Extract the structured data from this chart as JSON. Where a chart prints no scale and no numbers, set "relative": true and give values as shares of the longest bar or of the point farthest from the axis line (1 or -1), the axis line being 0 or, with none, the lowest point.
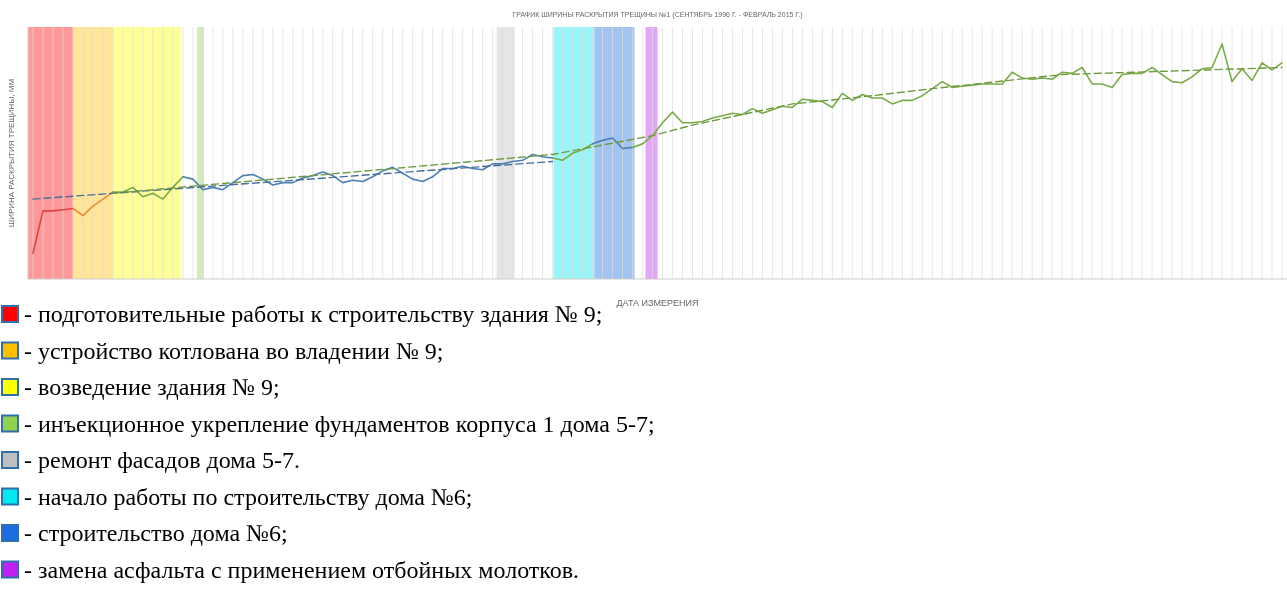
{
  "chart_data": {
    "type": "line",
    "title": "ГРАФИК ШИРИНЫ РАСКРЫТИЯ ТРЕЩИНЫ №1 (СЕНТЯБРЬ 1996 Г. - ФЕВРАЛЬ 2015 Г.)",
    "xlabel": "ДАТА ИЗМЕРЕНИЯ",
    "ylabel": "ШИРИНА РАСКРЫТИЯ ТРЕЩИНЫ, ММ",
    "relative": true,
    "grid": "x",
    "marker": "none",
    "categories": [
      null,
      null,
      null,
      null,
      null,
      null,
      null,
      null,
      null,
      null,
      null,
      null,
      null,
      null,
      null,
      null,
      null,
      null,
      null,
      null,
      null,
      null,
      null,
      null,
      null,
      null,
      null,
      null,
      null,
      null,
      null,
      null,
      null,
      null,
      null,
      null,
      null,
      null,
      null,
      null,
      null,
      null,
      null,
      null,
      null,
      null,
      null,
      null,
      null,
      null,
      null,
      null,
      null,
      null,
      null,
      null,
      null,
      null,
      null,
      null,
      null,
      null,
      null,
      null,
      null,
      null,
      null,
      null,
      null,
      null,
      null,
      null,
      null,
      null,
      null,
      null,
      null,
      null,
      null,
      null,
      null,
      null,
      null,
      null,
      null,
      null,
      null,
      null,
      null,
      null,
      null,
      null,
      null,
      null,
      null,
      null,
      null,
      null,
      null,
      null,
      null,
      null,
      null,
      null,
      null,
      null,
      null,
      null,
      null,
      null,
      null,
      null,
      null,
      null,
      null,
      null,
      null,
      null,
      null,
      null,
      null,
      null,
      null,
      null,
      null,
      null
    ],
    "series": [
      {
        "color": "#e04040",
        "line_style": "solid",
        "values": [
          0.11,
          0.29,
          0.29,
          0.295,
          0.3,
          null,
          null,
          null,
          null,
          null,
          null,
          null,
          null,
          null,
          null,
          null,
          null,
          null,
          null,
          null,
          null,
          null,
          null,
          null,
          null,
          null,
          null,
          null,
          null,
          null,
          null,
          null,
          null,
          null,
          null,
          null,
          null,
          null,
          null,
          null,
          null,
          null,
          null,
          null,
          null,
          null,
          null,
          null,
          null,
          null,
          null,
          null,
          null,
          null,
          null,
          null,
          null,
          null,
          null,
          null,
          null,
          null,
          null,
          null,
          null,
          null,
          null,
          null,
          null,
          null,
          null,
          null,
          null,
          null,
          null,
          null,
          null,
          null,
          null,
          null,
          null,
          null,
          null,
          null,
          null,
          null,
          null,
          null,
          null,
          null,
          null,
          null,
          null,
          null,
          null,
          null,
          null,
          null,
          null,
          null,
          null,
          null,
          null,
          null,
          null,
          null,
          null,
          null,
          null,
          null,
          null,
          null,
          null,
          null,
          null,
          null,
          null,
          null,
          null,
          null,
          null,
          null,
          null,
          null,
          null,
          null
        ]
      },
      {
        "color": "#f0883a",
        "line_style": "solid",
        "values": [
          null,
          null,
          null,
          null,
          0.3,
          0.27,
          0.31,
          0.34,
          0.37,
          null,
          null,
          null,
          null,
          null,
          null,
          null,
          null,
          null,
          null,
          null,
          null,
          null,
          null,
          null,
          null,
          null,
          null,
          null,
          null,
          null,
          null,
          null,
          null,
          null,
          null,
          null,
          null,
          null,
          null,
          null,
          null,
          null,
          null,
          null,
          null,
          null,
          null,
          null,
          null,
          null,
          null,
          null,
          null,
          null,
          null,
          null,
          null,
          null,
          null,
          null,
          null,
          null,
          null,
          null,
          null,
          null,
          null,
          null,
          null,
          null,
          null,
          null,
          null,
          null,
          null,
          null,
          null,
          null,
          null,
          null,
          null,
          null,
          null,
          null,
          null,
          null,
          null,
          null,
          null,
          null,
          null,
          null,
          null,
          null,
          null,
          null,
          null,
          null,
          null,
          null,
          null,
          null,
          null,
          null,
          null,
          null,
          null,
          null,
          null,
          null,
          null,
          null,
          null,
          null,
          null,
          null,
          null,
          null,
          null,
          null,
          null,
          null,
          null,
          null,
          null,
          null
        ]
      },
      {
        "color": "#7aab4a",
        "line_style": "solid",
        "values": [
          null,
          null,
          null,
          null,
          null,
          null,
          null,
          null,
          0.37,
          0.37,
          0.39,
          0.35,
          0.365,
          0.34,
          0.39,
          0.435,
          null,
          null,
          null,
          null,
          null,
          null,
          null,
          null,
          null,
          null,
          null,
          null,
          null,
          null,
          null,
          null,
          null,
          null,
          null,
          null,
          null,
          null,
          null,
          null,
          null,
          null,
          null,
          null,
          null,
          null,
          null,
          null,
          null,
          null,
          null,
          null,
          null,
          null,
          null,
          null,
          null,
          null,
          null,
          null,
          null,
          null,
          null,
          null,
          null,
          null,
          null,
          null,
          null,
          null,
          null,
          null,
          null,
          null,
          null,
          null,
          null,
          null,
          null,
          null,
          null,
          null,
          null,
          null,
          null,
          null,
          null,
          null,
          null,
          null,
          null,
          null,
          null,
          null,
          null,
          null,
          null,
          null,
          null,
          null,
          null,
          null,
          null,
          null,
          null,
          null,
          null,
          null,
          null,
          null,
          null,
          null,
          null,
          null,
          null,
          null,
          null,
          null,
          null,
          null,
          null,
          null,
          null,
          null,
          null,
          null
        ]
      },
      {
        "color": "#4a80b4",
        "line_style": "solid",
        "values": [
          null,
          null,
          null,
          null,
          null,
          null,
          null,
          null,
          null,
          null,
          null,
          null,
          null,
          null,
          null,
          0.435,
          0.425,
          0.38,
          0.39,
          0.38,
          0.41,
          0.44,
          0.445,
          0.425,
          0.4,
          0.41,
          0.41,
          0.43,
          0.44,
          0.455,
          0.44,
          0.41,
          0.42,
          0.415,
          0.435,
          0.46,
          0.475,
          0.45,
          0.425,
          0.415,
          0.435,
          0.47,
          0.47,
          0.48,
          0.47,
          0.465,
          0.49,
          0.49,
          0.5,
          0.505,
          0.53,
          0.52,
          0.515,
          null,
          null,
          null,
          null,
          null,
          null,
          null,
          null,
          null,
          null,
          null,
          null,
          null,
          null,
          null,
          null,
          null,
          null,
          null,
          null,
          null,
          null,
          null,
          null,
          null,
          null,
          null,
          null,
          null,
          null,
          null,
          null,
          null,
          null,
          null,
          null,
          null,
          null,
          null,
          null,
          null,
          null,
          null,
          null,
          null,
          null,
          null,
          null,
          null,
          null,
          null,
          null,
          null,
          null,
          null,
          null,
          null,
          null,
          null,
          null,
          null,
          null,
          null,
          null,
          null,
          null,
          null,
          null,
          null,
          null,
          null,
          null,
          null
        ]
      },
      {
        "color": "#7aab4a",
        "line_style": "solid",
        "values": [
          null,
          null,
          null,
          null,
          null,
          null,
          null,
          null,
          null,
          null,
          null,
          null,
          null,
          null,
          null,
          null,
          null,
          null,
          null,
          null,
          null,
          null,
          null,
          null,
          null,
          null,
          null,
          null,
          null,
          null,
          null,
          null,
          null,
          null,
          null,
          null,
          null,
          null,
          null,
          null,
          null,
          null,
          null,
          null,
          null,
          null,
          null,
          null,
          null,
          null,
          null,
          null,
          0.515,
          0.505,
          0.535,
          0.55,
          0.575,
          null,
          null,
          null,
          null,
          null,
          null,
          null,
          null,
          null,
          null,
          null,
          null,
          null,
          null,
          null,
          null,
          null,
          null,
          null,
          null,
          null,
          null,
          null,
          null,
          null,
          null,
          null,
          null,
          null,
          null,
          null,
          null,
          null,
          null,
          null,
          null,
          null,
          null,
          null,
          null,
          null,
          null,
          null,
          null,
          null,
          null,
          null,
          null,
          null,
          null,
          null,
          null,
          null,
          null,
          null,
          null,
          null,
          null,
          null,
          null,
          null,
          null,
          null,
          null,
          null,
          null,
          null,
          null,
          null
        ]
      },
      {
        "color": "#4a80b4",
        "line_style": "solid",
        "values": [
          null,
          null,
          null,
          null,
          null,
          null,
          null,
          null,
          null,
          null,
          null,
          null,
          null,
          null,
          null,
          null,
          null,
          null,
          null,
          null,
          null,
          null,
          null,
          null,
          null,
          null,
          null,
          null,
          null,
          null,
          null,
          null,
          null,
          null,
          null,
          null,
          null,
          null,
          null,
          null,
          null,
          null,
          null,
          null,
          null,
          null,
          null,
          null,
          null,
          null,
          null,
          null,
          null,
          null,
          null,
          null,
          0.575,
          0.59,
          0.6,
          0.555,
          0.56,
          null,
          null,
          null,
          null,
          null,
          null,
          null,
          null,
          null,
          null,
          null,
          null,
          null,
          null,
          null,
          null,
          null,
          null,
          null,
          null,
          null,
          null,
          null,
          null,
          null,
          null,
          null,
          null,
          null,
          null,
          null,
          null,
          null,
          null,
          null,
          null,
          null,
          null,
          null,
          null,
          null,
          null,
          null,
          null,
          null,
          null,
          null,
          null,
          null,
          null,
          null,
          null,
          null,
          null,
          null,
          null,
          null,
          null,
          null,
          null,
          null,
          null,
          null,
          null,
          null
        ]
      },
      {
        "color": "#7aab4a",
        "line_style": "solid",
        "values": [
          null,
          null,
          null,
          null,
          null,
          null,
          null,
          null,
          null,
          null,
          null,
          null,
          null,
          null,
          null,
          null,
          null,
          null,
          null,
          null,
          null,
          null,
          null,
          null,
          null,
          null,
          null,
          null,
          null,
          null,
          null,
          null,
          null,
          null,
          null,
          null,
          null,
          null,
          null,
          null,
          null,
          null,
          null,
          null,
          null,
          null,
          null,
          null,
          null,
          null,
          null,
          null,
          null,
          null,
          null,
          null,
          null,
          null,
          null,
          null,
          0.56,
          0.575,
          0.61,
          0.665,
          0.71,
          0.665,
          0.665,
          0.67,
          0.685,
          0.695,
          0.705,
          0.7,
          0.725,
          0.705,
          0.72,
          0.735,
          0.73,
          0.765,
          0.76,
          0.755,
          0.73,
          0.79,
          0.76,
          0.785,
          0.77,
          0.77,
          0.745,
          0.76,
          0.76,
          0.78,
          0.81,
          0.84,
          0.815,
          0.82,
          0.825,
          0.83,
          0.83,
          0.83,
          0.88,
          0.855,
          0.85,
          0.855,
          0.85,
          0.88,
          0.875,
          0.9,
          0.83,
          0.83,
          0.815,
          0.87,
          0.875,
          0.875,
          0.9,
          0.87,
          0.84,
          0.835,
          0.86,
          0.895,
          0.9,
          1.0,
          0.84,
          0.895,
          0.845,
          0.92,
          0.89,
          0.92
        ]
      },
      {
        "type": "line",
        "color": "#4a6f9a",
        "line_style": "dashed",
        "values": [
          0.34,
          null,
          null,
          null,
          null,
          null,
          null,
          null,
          null,
          null,
          null,
          null,
          null,
          null,
          null,
          null,
          null,
          null,
          null,
          null,
          null,
          null,
          null,
          null,
          null,
          null,
          null,
          null,
          null,
          null,
          null,
          null,
          null,
          null,
          null,
          null,
          null,
          null,
          null,
          null,
          null,
          null,
          null,
          null,
          null,
          null,
          null,
          null,
          null,
          null,
          null,
          null,
          0.5,
          null,
          null,
          null,
          null,
          null,
          null,
          null,
          null,
          null,
          null,
          null,
          null,
          null,
          null,
          null,
          null,
          null,
          null,
          null,
          null,
          null,
          null,
          null,
          null,
          null,
          null,
          null,
          null,
          null,
          null,
          null,
          null,
          null,
          null,
          null,
          null,
          null,
          null,
          null,
          null,
          null,
          null,
          null,
          null,
          null,
          null,
          null,
          null,
          null,
          null,
          null,
          null,
          null,
          null,
          null,
          null,
          null,
          null,
          null,
          null,
          null,
          null,
          null,
          null,
          null,
          null,
          null,
          null,
          null,
          null,
          null,
          null,
          null
        ]
      },
      {
        "type": "line",
        "color": "#6f9a40",
        "line_style": "dashed",
        "values": [
          null,
          null,
          null,
          null,
          null,
          null,
          null,
          null,
          0.365,
          null,
          null,
          null,
          null,
          null,
          null,
          null,
          null,
          null,
          null,
          null,
          null,
          null,
          null,
          null,
          null,
          null,
          null,
          null,
          null,
          null,
          null,
          null,
          null,
          null,
          null,
          null,
          null,
          null,
          null,
          null,
          null,
          null,
          null,
          null,
          null,
          null,
          null,
          null,
          null,
          null,
          null,
          null,
          0.53,
          null,
          null,
          null,
          null,
          null,
          null,
          null,
          null,
          null,
          0.61,
          null,
          null,
          null,
          0.655,
          null,
          null,
          null,
          null,
          null,
          null,
          null,
          null,
          null,
          0.745,
          null,
          null,
          null,
          null,
          null,
          null,
          0.775,
          null,
          null,
          null,
          null,
          null,
          null,
          0.81,
          null,
          null,
          null,
          null,
          null,
          null,
          null,
          null,
          null,
          null,
          null,
          null,
          0.87,
          null,
          null,
          null,
          null,
          null,
          null,
          null,
          null,
          null,
          null,
          null,
          null,
          null,
          null,
          null,
          null,
          null,
          null,
          null,
          null,
          null,
          0.9
        ]
      }
    ],
    "annotations": [
      "- подготовительные работы к строительству здания № 9;",
      "- устройство котлована во владении № 9;",
      "- возведение здания № 9;",
      "- инъекционное укрепление фундаментов корпуса 1 дома 5-7;",
      "- ремонт фасадов дома 5-7.",
      "- начало работы по строительству дома №6;",
      "- строительство дома №6;",
      "- замена асфальта с применением отбойных молотков."
    ]
  }
}
